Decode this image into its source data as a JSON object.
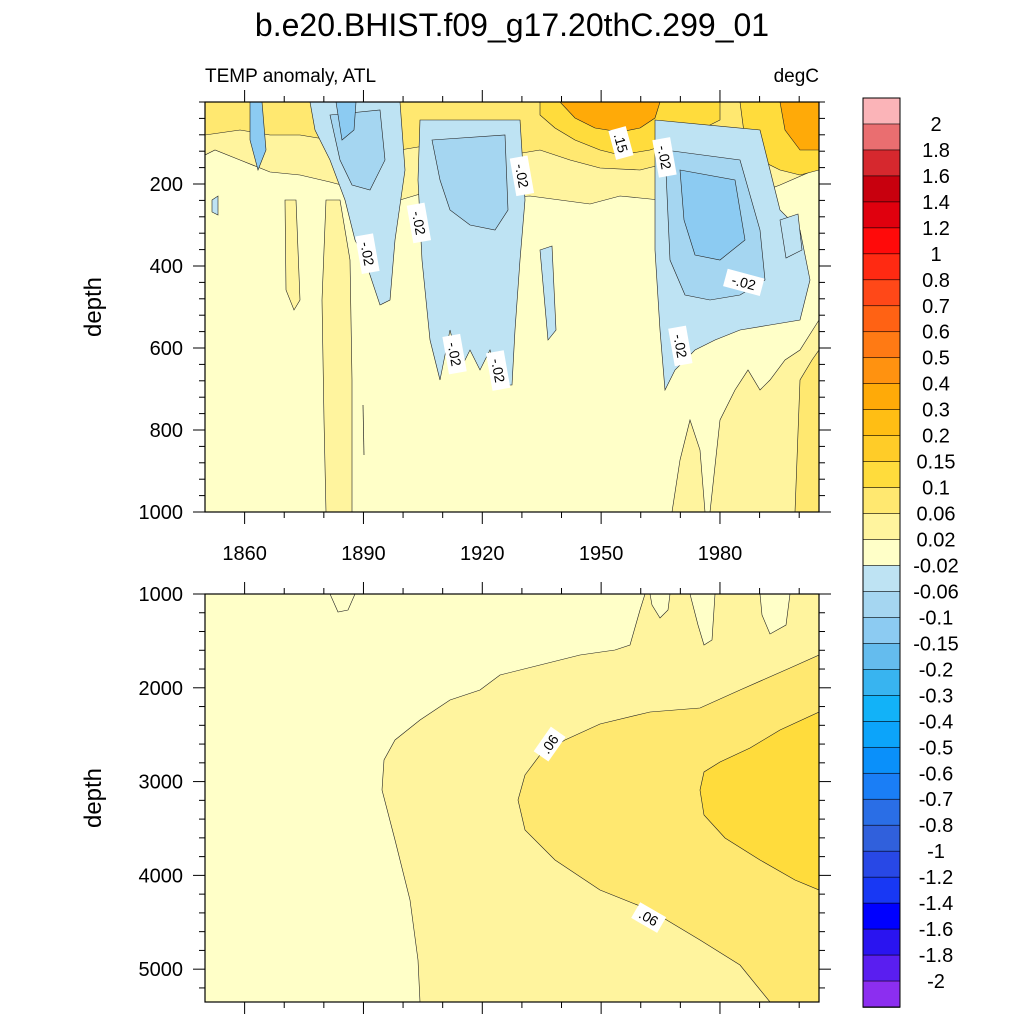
{
  "chart_data": {
    "type": "heatmap",
    "title": "b.e20.BHIST.f09_g17.20thC.299_01",
    "left_subtitle": "TEMP anomaly, ATL",
    "right_subtitle": "degC",
    "x": {
      "label": "",
      "range": [
        1850,
        2005
      ],
      "ticks": [
        1860,
        1890,
        1920,
        1950,
        1980
      ],
      "tick_labels": [
        "1860",
        "1890",
        "1920",
        "1950",
        "1980"
      ]
    },
    "upper_panel": {
      "ylabel": "depth",
      "yrange": [
        0,
        1000
      ],
      "y_ticks": [
        200,
        400,
        600,
        800,
        1000
      ],
      "y_tick_labels": [
        "200",
        "400",
        "600",
        "800",
        "1000"
      ],
      "contour_labels": [
        {
          "text": "-.02",
          "year": 1891,
          "depth": 370,
          "rotate": 80
        },
        {
          "text": "-.02",
          "year": 1904,
          "depth": 295,
          "rotate": 80
        },
        {
          "text": "-.02",
          "year": 1913,
          "depth": 615,
          "rotate": 80
        },
        {
          "text": "-.02",
          "year": 1924,
          "depth": 655,
          "rotate": 80
        },
        {
          "text": "-.02",
          "year": 1930,
          "depth": 180,
          "rotate": 80
        },
        {
          "text": ".15",
          "year": 1955,
          "depth": 100,
          "rotate": 75
        },
        {
          "text": "-.02",
          "year": 1966,
          "depth": 135,
          "rotate": 80
        },
        {
          "text": "-.02",
          "year": 1970,
          "depth": 595,
          "rotate": 80
        },
        {
          "text": "-.02",
          "year": 1986,
          "depth": 440,
          "rotate": 15
        }
      ]
    },
    "lower_panel": {
      "ylabel": "depth",
      "yrange": [
        1000,
        5350
      ],
      "y_ticks": [
        1000,
        2000,
        3000,
        4000,
        5000
      ],
      "y_tick_labels": [
        "1000",
        "2000",
        "3000",
        "4000",
        "5000"
      ],
      "contour_labels": [
        {
          "text": ".06",
          "year": 1937,
          "depth": 2600,
          "rotate": -55
        },
        {
          "text": ".06",
          "year": 1962,
          "depth": 4450,
          "rotate": 30
        }
      ]
    },
    "colorbar": {
      "levels": [
        "2",
        "1.8",
        "1.6",
        "1.4",
        "1.2",
        "1",
        "0.8",
        "0.7",
        "0.6",
        "0.5",
        "0.4",
        "0.3",
        "0.2",
        "0.15",
        "0.1",
        "0.06",
        "0.02",
        "-0.02",
        "-0.06",
        "-0.1",
        "-0.15",
        "-0.2",
        "-0.3",
        "-0.4",
        "-0.5",
        "-0.6",
        "-0.7",
        "-0.8",
        "-1",
        "-1.2",
        "-1.4",
        "-1.6",
        "-1.8",
        "-2"
      ],
      "colors": [
        "#fbb4b8",
        "#ea6e70",
        "#d6282e",
        "#c8000e",
        "#e0000e",
        "#ff0a0a",
        "#ff2a12",
        "#ff4818",
        "#ff6214",
        "#ff7a14",
        "#ff9210",
        "#ffaa08",
        "#ffbe14",
        "#ffcc28",
        "#ffdc3c",
        "#ffe870",
        "#fff49e",
        "#ffffc8",
        "#bee3f3",
        "#a5d6f1",
        "#8ccbf2",
        "#64bcee",
        "#38b4f0",
        "#12b2f8",
        "#0ca4fa",
        "#0a90fa",
        "#1a7ef6",
        "#2a6ee6",
        "#3060dc",
        "#2848e6",
        "#1838f4",
        "#0000ff",
        "#2a14f0",
        "#5a1ef0",
        "#8c2ef0"
      ]
    }
  }
}
